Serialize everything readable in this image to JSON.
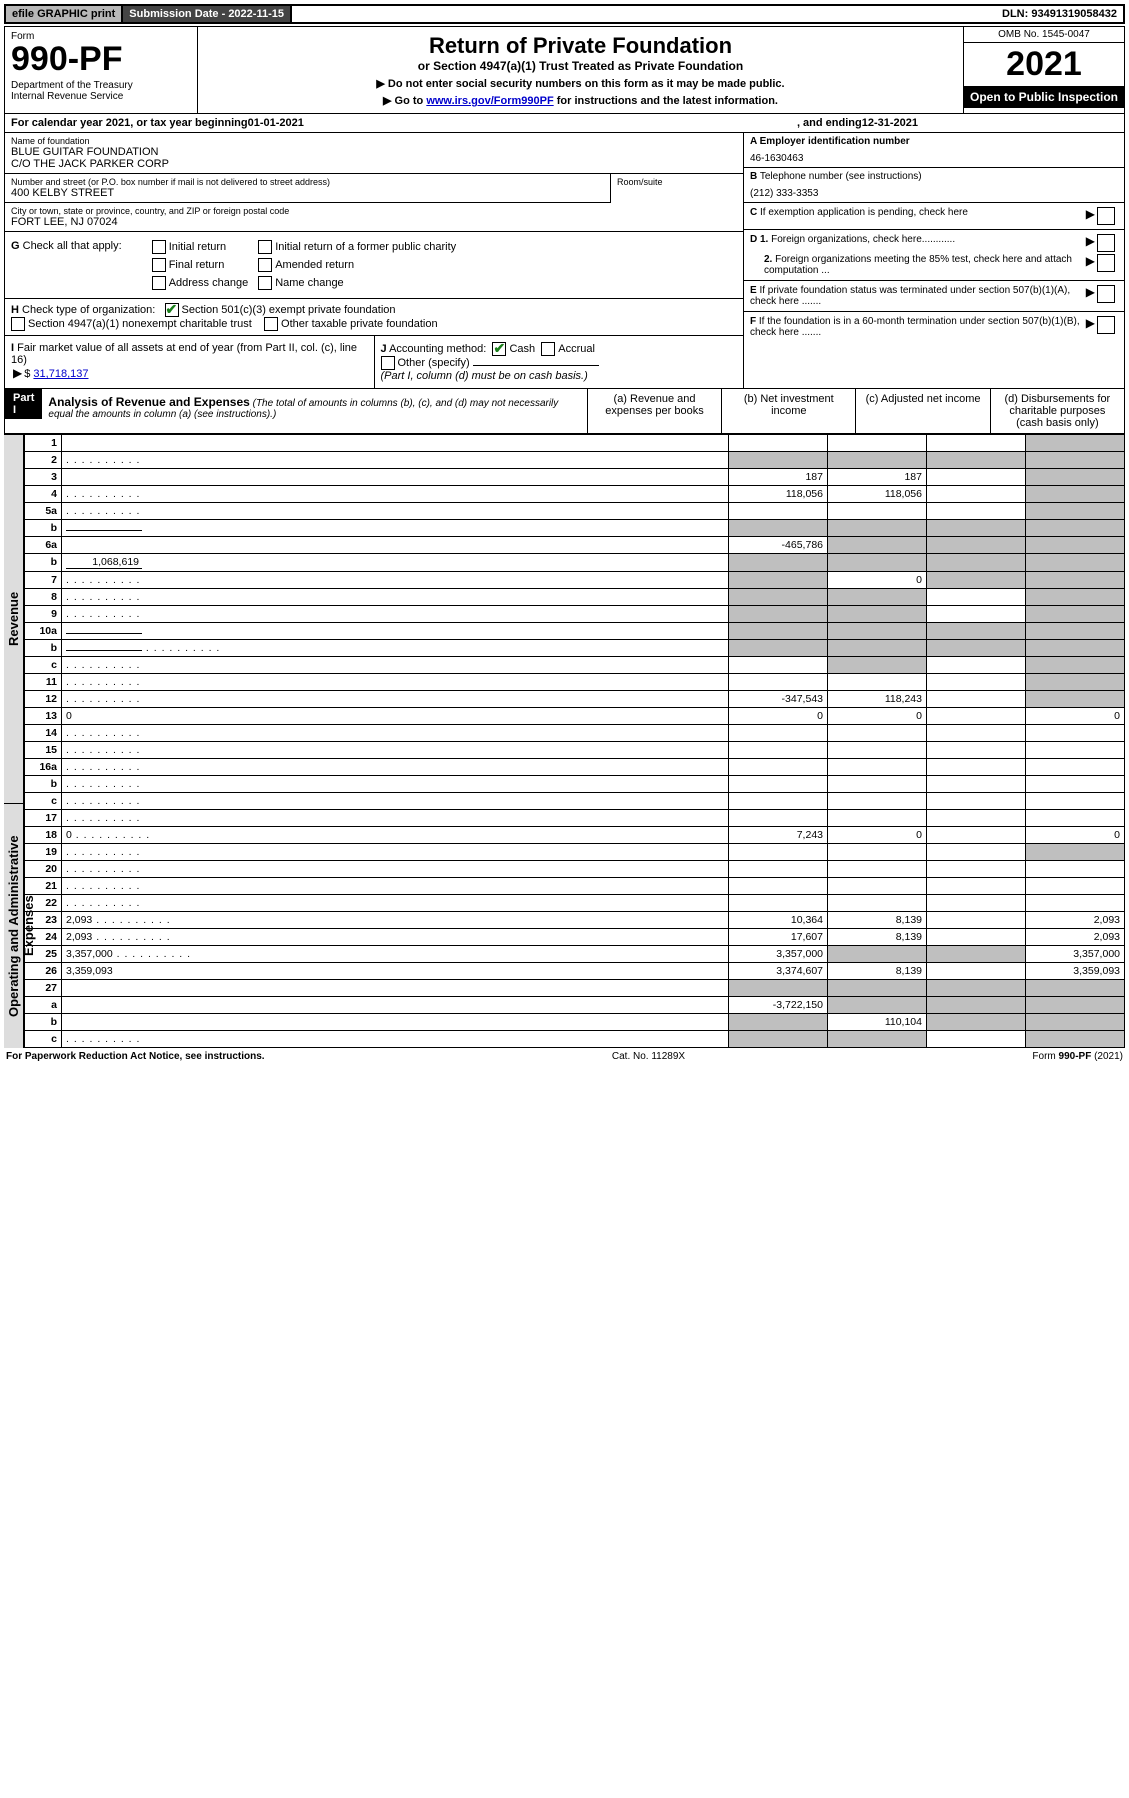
{
  "topbar": {
    "efile": "efile GRAPHIC print",
    "submission": "Submission Date - 2022-11-15",
    "dln": "DLN: 93491319058432"
  },
  "header": {
    "form_label": "Form",
    "form_number": "990-PF",
    "dept": "Department of the Treasury\nInternal Revenue Service",
    "title": "Return of Private Foundation",
    "subtitle": "or Section 4947(a)(1) Trust Treated as Private Foundation",
    "instr1": "▶ Do not enter social security numbers on this form as it may be made public.",
    "instr2_pre": "▶ Go to ",
    "instr2_link": "www.irs.gov/Form990PF",
    "instr2_post": " for instructions and the latest information.",
    "omb": "OMB No. 1545-0047",
    "year": "2021",
    "open": "Open to Public Inspection"
  },
  "cal": {
    "text_a": "For calendar year 2021, or tax year beginning ",
    "begin": "01-01-2021",
    "text_b": ", and ending ",
    "end": "12-31-2021"
  },
  "entity": {
    "name_label": "Name of foundation",
    "name1": "BLUE GUITAR FOUNDATION",
    "name2": "C/O THE JACK PARKER CORP",
    "addr_label": "Number and street (or P.O. box number if mail is not delivered to street address)",
    "addr": "400 KELBY STREET",
    "room_label": "Room/suite",
    "city_label": "City or town, state or province, country, and ZIP or foreign postal code",
    "city": "FORT LEE, NJ  07024",
    "A_label": "A Employer identification number",
    "A_val": "46-1630463",
    "B_label": "B",
    "B_text": "Telephone number (see instructions)",
    "B_val": "(212) 333-3353",
    "C_text": "If exemption application is pending, check here",
    "D1": "Foreign organizations, check here",
    "D1_label": "D 1.",
    "D2_label": "2.",
    "D2": "Foreign organizations meeting the 85% test, check here and attach computation ...",
    "E_text": "If private foundation status was terminated under section 507(b)(1)(A), check here .......",
    "F_text": "If the foundation is in a 60-month termination under section 507(b)(1)(B), check here ......."
  },
  "G": {
    "label": "G",
    "text": "Check all that apply:",
    "opts": [
      "Initial return",
      "Final return",
      "Address change",
      "Initial return of a former public charity",
      "Amended return",
      "Name change"
    ]
  },
  "H": {
    "label": "H",
    "text": "Check type of organization:",
    "opt1": "Section 501(c)(3) exempt private foundation",
    "opt2": "Section 4947(a)(1) nonexempt charitable trust",
    "opt3": "Other taxable private foundation"
  },
  "I": {
    "label": "I",
    "text": "Fair market value of all assets at end of year (from Part II, col. (c), line 16)",
    "val": "31,718,137"
  },
  "J": {
    "label": "J",
    "text": "Accounting method:",
    "cash": "Cash",
    "accrual": "Accrual",
    "other": "Other (specify)",
    "note": "(Part I, column (d) must be on cash basis.)"
  },
  "part1": {
    "label": "Part I",
    "title": "Analysis of Revenue and Expenses",
    "note": "(The total of amounts in columns (b), (c), and (d) may not necessarily equal the amounts in column (a) (see instructions).)",
    "cols": {
      "a": "(a)  Revenue and expenses per books",
      "b": "(b)  Net investment income",
      "c": "(c)  Adjusted net income",
      "d": "(d)  Disbursements for charitable purposes (cash basis only)"
    },
    "side_rev": "Revenue",
    "side_exp": "Operating and Administrative Expenses"
  },
  "rows": [
    {
      "n": "1",
      "d": "",
      "a": "",
      "b": "",
      "c": "",
      "shade": [
        "d"
      ]
    },
    {
      "n": "2",
      "d": "",
      "dots": true,
      "a": "",
      "b": "",
      "c": "",
      "shade": [
        "a",
        "b",
        "c",
        "d"
      ],
      "checked": true
    },
    {
      "n": "3",
      "d": "",
      "a": "187",
      "b": "187",
      "c": "",
      "shade": [
        "d"
      ]
    },
    {
      "n": "4",
      "d": "",
      "dots": true,
      "a": "118,056",
      "b": "118,056",
      "c": "",
      "shade": [
        "d"
      ]
    },
    {
      "n": "5a",
      "d": "",
      "dots": true,
      "a": "",
      "b": "",
      "c": "",
      "shade": [
        "d"
      ]
    },
    {
      "n": "b",
      "d": "",
      "inline": "",
      "a": "",
      "b": "",
      "c": "",
      "shade": [
        "a",
        "b",
        "c",
        "d"
      ]
    },
    {
      "n": "6a",
      "d": "",
      "a": "-465,786",
      "b": "",
      "c": "",
      "shade": [
        "b",
        "c",
        "d"
      ]
    },
    {
      "n": "b",
      "d": "",
      "inline": "1,068,619",
      "a": "",
      "b": "",
      "c": "",
      "shade": [
        "a",
        "b",
        "c",
        "d"
      ]
    },
    {
      "n": "7",
      "d": "",
      "dots": true,
      "a": "",
      "b": "0",
      "c": "",
      "shade": [
        "a",
        "c",
        "d"
      ]
    },
    {
      "n": "8",
      "d": "",
      "dots": true,
      "a": "",
      "b": "",
      "c": "",
      "shade": [
        "a",
        "b",
        "d"
      ]
    },
    {
      "n": "9",
      "d": "",
      "dots": true,
      "a": "",
      "b": "",
      "c": "",
      "shade": [
        "a",
        "b",
        "d"
      ]
    },
    {
      "n": "10a",
      "d": "",
      "inline": "",
      "a": "",
      "b": "",
      "c": "",
      "shade": [
        "a",
        "b",
        "c",
        "d"
      ]
    },
    {
      "n": "b",
      "d": "",
      "dots": true,
      "inline": "",
      "a": "",
      "b": "",
      "c": "",
      "shade": [
        "a",
        "b",
        "c",
        "d"
      ]
    },
    {
      "n": "c",
      "d": "",
      "dots": true,
      "a": "",
      "b": "",
      "c": "",
      "shade": [
        "b",
        "d"
      ]
    },
    {
      "n": "11",
      "d": "",
      "dots": true,
      "a": "",
      "b": "",
      "c": "",
      "shade": [
        "d"
      ]
    },
    {
      "n": "12",
      "d": "",
      "dots": true,
      "a": "-347,543",
      "b": "118,243",
      "c": "",
      "shade": [
        "d"
      ]
    },
    {
      "n": "13",
      "d": "0",
      "a": "0",
      "b": "0",
      "c": ""
    },
    {
      "n": "14",
      "d": "",
      "dots": true,
      "a": "",
      "b": "",
      "c": ""
    },
    {
      "n": "15",
      "d": "",
      "dots": true,
      "a": "",
      "b": "",
      "c": ""
    },
    {
      "n": "16a",
      "d": "",
      "dots": true,
      "a": "",
      "b": "",
      "c": ""
    },
    {
      "n": "b",
      "d": "",
      "dots": true,
      "a": "",
      "b": "",
      "c": ""
    },
    {
      "n": "c",
      "d": "",
      "dots": true,
      "a": "",
      "b": "",
      "c": ""
    },
    {
      "n": "17",
      "d": "",
      "dots": true,
      "a": "",
      "b": "",
      "c": ""
    },
    {
      "n": "18",
      "d": "0",
      "dots": true,
      "a": "7,243",
      "b": "0",
      "c": ""
    },
    {
      "n": "19",
      "d": "",
      "dots": true,
      "a": "",
      "b": "",
      "c": "",
      "shade": [
        "d"
      ]
    },
    {
      "n": "20",
      "d": "",
      "dots": true,
      "a": "",
      "b": "",
      "c": ""
    },
    {
      "n": "21",
      "d": "",
      "dots": true,
      "a": "",
      "b": "",
      "c": ""
    },
    {
      "n": "22",
      "d": "",
      "dots": true,
      "a": "",
      "b": "",
      "c": ""
    },
    {
      "n": "23",
      "d": "2,093",
      "dots": true,
      "a": "10,364",
      "b": "8,139",
      "c": ""
    },
    {
      "n": "24",
      "d": "2,093",
      "dots": true,
      "a": "17,607",
      "b": "8,139",
      "c": ""
    },
    {
      "n": "25",
      "d": "3,357,000",
      "dots": true,
      "a": "3,357,000",
      "b": "",
      "c": "",
      "shade": [
        "b",
        "c"
      ]
    },
    {
      "n": "26",
      "d": "3,359,093",
      "a": "3,374,607",
      "b": "8,139",
      "c": ""
    },
    {
      "n": "27",
      "d": "",
      "a": "",
      "b": "",
      "c": "",
      "shade": [
        "a",
        "b",
        "c",
        "d"
      ]
    },
    {
      "n": "a",
      "d": "",
      "a": "-3,722,150",
      "b": "",
      "c": "",
      "shade": [
        "b",
        "c",
        "d"
      ]
    },
    {
      "n": "b",
      "d": "",
      "a": "",
      "b": "110,104",
      "c": "",
      "shade": [
        "a",
        "c",
        "d"
      ]
    },
    {
      "n": "c",
      "d": "",
      "dots": true,
      "a": "",
      "b": "",
      "c": "",
      "shade": [
        "a",
        "b",
        "d"
      ]
    }
  ],
  "footer": {
    "left": "For Paperwork Reduction Act Notice, see instructions.",
    "mid": "Cat. No. 11289X",
    "right": "Form 990-PF (2021)"
  }
}
